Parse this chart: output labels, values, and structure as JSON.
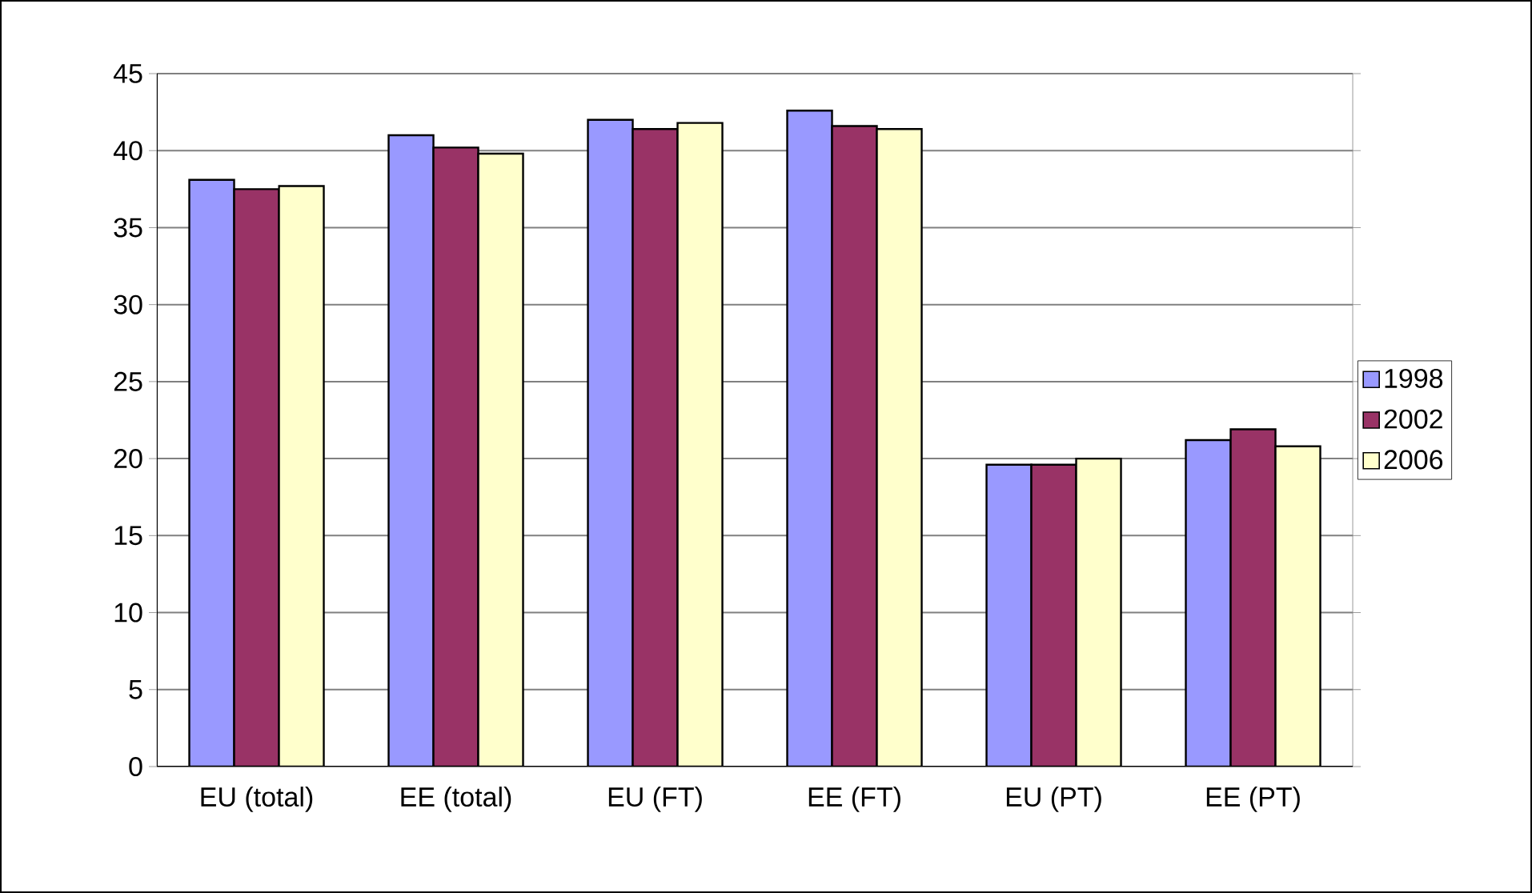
{
  "chart_data": {
    "type": "bar",
    "categories": [
      "EU (total)",
      "EE (total)",
      "EU (FT)",
      "EE (FT)",
      "EU (PT)",
      "EE (PT)"
    ],
    "series": [
      {
        "name": "1998",
        "color": "#9999ff",
        "values": [
          38.1,
          41.0,
          42.0,
          42.6,
          19.6,
          21.2
        ]
      },
      {
        "name": "2002",
        "color": "#993366",
        "values": [
          37.5,
          40.2,
          41.4,
          41.6,
          19.6,
          21.9
        ]
      },
      {
        "name": "2006",
        "color": "#ffffcc",
        "values": [
          37.7,
          39.8,
          41.8,
          41.4,
          20.0,
          20.8
        ]
      }
    ],
    "ylim": [
      0,
      45
    ],
    "yticks": [
      0,
      5,
      10,
      15,
      20,
      25,
      30,
      35,
      40,
      45
    ],
    "grid": "y",
    "legend": "right"
  }
}
